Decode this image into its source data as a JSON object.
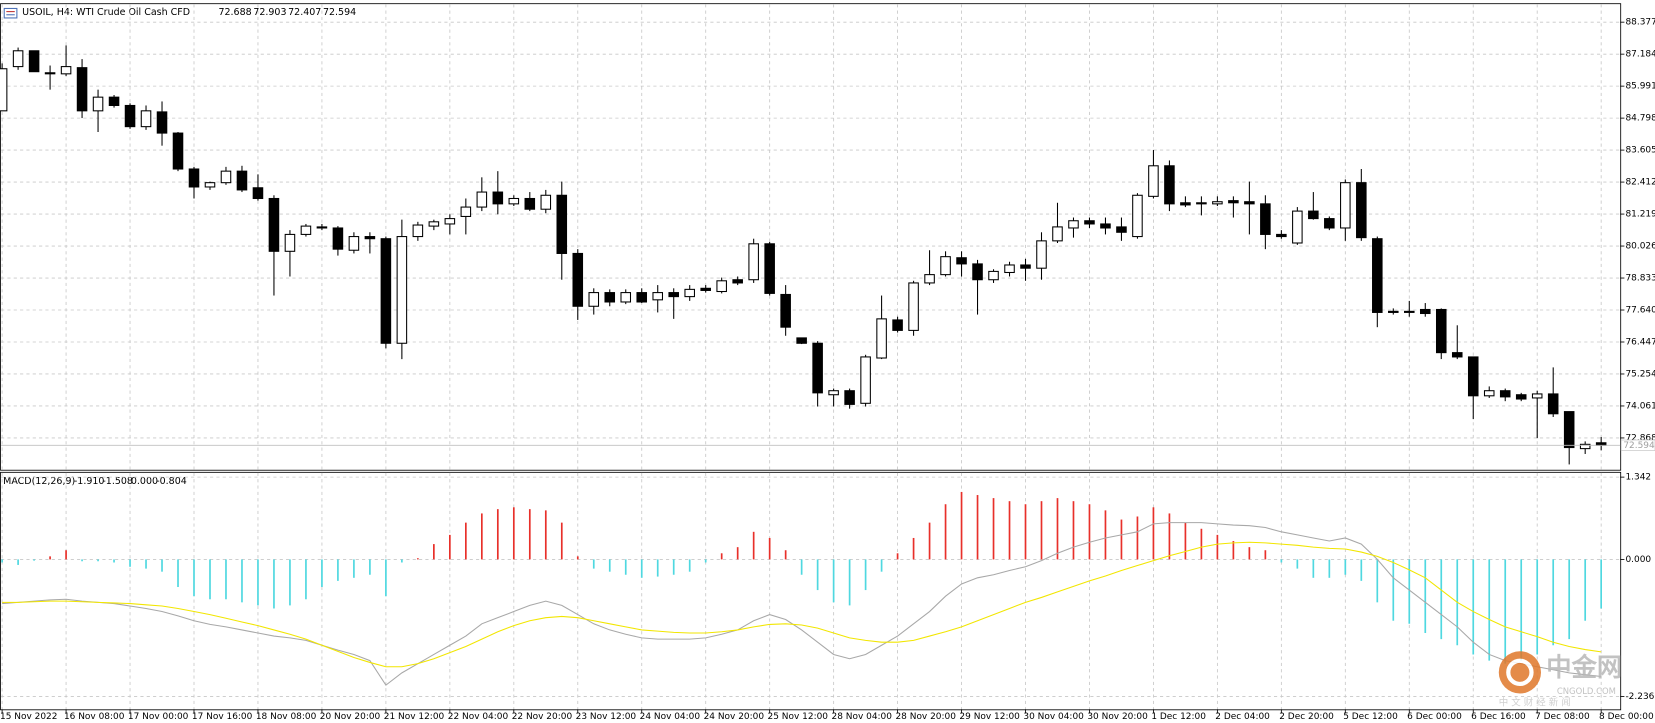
{
  "chart_data": [
    {
      "type": "candlestick",
      "title": "USOIL, H4:  WTI Crude Oil Cash CFD",
      "categories": [
        "15 Nov 2022",
        null,
        null,
        null,
        "16 Nov 08:00",
        null,
        null,
        null,
        "17 Nov 00:00",
        null,
        null,
        null,
        "17 Nov 16:00",
        null,
        null,
        null,
        "18 Nov 08:00",
        null,
        null,
        null,
        "20 Nov 20:00",
        null,
        null,
        null,
        "21 Nov 12:00",
        null,
        null,
        null,
        "22 Nov 04:00",
        null,
        null,
        null,
        "22 Nov 20:00",
        null,
        null,
        null,
        "23 Nov 12:00",
        null,
        null,
        null,
        "24 Nov 04:00",
        null,
        null,
        null,
        "24 Nov 20:00",
        null,
        null,
        null,
        "25 Nov 12:00",
        null,
        null,
        null,
        "28 Nov 04:00",
        null,
        null,
        null,
        "28 Nov 20:00",
        null,
        null,
        null,
        "29 Nov 12:00",
        null,
        null,
        null,
        "30 Nov 04:00",
        null,
        null,
        null,
        "30 Nov 20:00",
        null,
        null,
        null,
        "1 Dec 12:00",
        null,
        null,
        null,
        "2 Dec 04:00",
        null,
        null,
        null,
        "2 Dec 20:00",
        null,
        null,
        null,
        "5 Dec 12:00",
        null,
        null,
        null,
        "6 Dec 00:00",
        null,
        null,
        null,
        "6 Dec 16:00",
        null,
        null,
        null,
        "7 Dec 08:00",
        null,
        null,
        null,
        "8 Dec 00:00"
      ],
      "open": [
        85.07,
        86.72,
        87.31,
        86.49,
        86.45,
        86.68,
        85.07,
        85.58,
        85.27,
        84.48,
        85.03,
        84.24,
        82.9,
        82.23,
        82.39,
        82.82,
        82.2,
        81.8,
        79.83,
        80.46,
        80.74,
        80.7,
        79.87,
        80.38,
        80.3,
        76.4,
        80.38,
        80.77,
        80.85,
        81.13,
        81.48,
        82.04,
        81.6,
        81.8,
        81.4,
        81.92,
        79.75,
        77.78,
        78.29,
        77.94,
        78.29,
        78.02,
        78.29,
        78.14,
        78.45,
        78.33,
        78.77,
        78.77,
        80.11,
        78.22,
        76.6,
        76.4,
        74.48,
        74.63,
        74.16,
        75.85,
        77.27,
        76.88,
        78.65,
        78.96,
        79.59,
        79.36,
        78.77,
        79.04,
        79.32,
        79.2,
        80.22,
        80.7,
        80.97,
        80.85,
        80.74,
        80.38,
        81.88,
        83.02,
        81.64,
        81.6,
        81.6,
        81.72,
        81.68,
        81.6,
        80.46,
        80.14,
        81.33,
        81.05,
        80.7,
        82.39,
        80.3,
        77.59,
        77.59,
        77.66,
        77.66,
        76.05,
        75.89,
        74.44,
        74.63,
        74.48,
        74.36,
        74.51,
        73.85,
        72.47,
        72.688
      ],
      "high": [
        86.84,
        87.43,
        87.31,
        86.76,
        87.51,
        87.0,
        85.86,
        85.66,
        85.35,
        85.27,
        85.42,
        84.28,
        82.98,
        82.43,
        82.98,
        83.02,
        82.7,
        81.92,
        80.62,
        80.85,
        80.85,
        80.77,
        80.54,
        80.54,
        80.38,
        81.01,
        80.93,
        81.01,
        81.21,
        81.8,
        82.59,
        82.82,
        81.92,
        82.04,
        82.12,
        82.43,
        79.91,
        78.45,
        78.41,
        78.41,
        78.45,
        78.57,
        78.45,
        78.57,
        78.57,
        78.85,
        78.89,
        80.3,
        80.18,
        78.57,
        76.6,
        76.48,
        74.71,
        74.71,
        75.97,
        78.18,
        77.39,
        78.73,
        79.87,
        79.83,
        79.83,
        79.51,
        79.16,
        79.44,
        79.55,
        80.54,
        81.64,
        81.09,
        81.09,
        81.09,
        81.09,
        82.0,
        83.61,
        83.22,
        81.88,
        81.88,
        81.88,
        81.88,
        82.43,
        81.92,
        80.62,
        81.48,
        82.04,
        81.13,
        82.51,
        82.9,
        80.38,
        77.7,
        77.98,
        77.9,
        77.7,
        77.07,
        75.89,
        74.79,
        74.71,
        74.55,
        74.63,
        75.5,
        73.85,
        72.74,
        72.903
      ],
      "low": [
        85.07,
        86.6,
        86.53,
        85.86,
        86.37,
        84.8,
        84.28,
        85.19,
        84.4,
        84.36,
        83.77,
        82.82,
        81.8,
        82.12,
        82.31,
        82.04,
        81.72,
        78.18,
        78.89,
        80.38,
        80.62,
        79.67,
        79.75,
        79.75,
        76.21,
        75.81,
        80.22,
        80.62,
        80.46,
        80.46,
        81.33,
        81.21,
        81.52,
        81.33,
        81.25,
        78.77,
        77.27,
        77.47,
        77.78,
        77.86,
        77.9,
        77.55,
        77.31,
        77.98,
        78.29,
        78.26,
        78.57,
        78.65,
        78.18,
        76.68,
        76.37,
        74.04,
        74.04,
        73.96,
        74.04,
        75.81,
        76.8,
        76.68,
        78.57,
        78.89,
        78.89,
        77.47,
        78.65,
        78.89,
        78.73,
        78.77,
        80.14,
        80.34,
        80.7,
        80.46,
        80.22,
        80.3,
        81.8,
        81.33,
        81.48,
        81.17,
        81.52,
        81.09,
        80.46,
        79.91,
        80.3,
        80.07,
        81.01,
        80.62,
        80.22,
        80.22,
        77.0,
        77.47,
        77.39,
        77.39,
        75.81,
        75.81,
        73.57,
        74.36,
        74.24,
        74.24,
        72.86,
        73.65,
        71.88,
        72.27,
        72.407
      ],
      "close": [
        86.64,
        87.31,
        86.53,
        86.47,
        86.72,
        85.07,
        85.58,
        85.27,
        84.48,
        85.07,
        84.24,
        82.9,
        82.23,
        82.39,
        82.82,
        82.12,
        81.8,
        79.83,
        80.46,
        80.77,
        80.7,
        79.91,
        80.38,
        80.3,
        76.4,
        80.38,
        80.81,
        80.93,
        81.05,
        81.48,
        82.04,
        81.6,
        81.8,
        81.4,
        81.92,
        79.75,
        77.78,
        78.29,
        77.94,
        78.29,
        77.94,
        78.29,
        78.14,
        78.41,
        78.37,
        78.73,
        78.65,
        80.11,
        78.26,
        77.0,
        76.4,
        74.55,
        74.63,
        74.12,
        75.89,
        77.31,
        76.88,
        78.65,
        78.96,
        79.63,
        79.36,
        78.77,
        79.08,
        79.32,
        79.2,
        80.22,
        80.74,
        80.97,
        80.85,
        80.7,
        80.54,
        81.92,
        83.02,
        81.6,
        81.56,
        81.64,
        81.68,
        81.64,
        81.6,
        80.46,
        80.38,
        81.33,
        81.05,
        80.7,
        82.39,
        80.34,
        77.55,
        77.55,
        77.58,
        77.51,
        76.05,
        75.89,
        74.44,
        74.63,
        74.4,
        74.32,
        74.51,
        73.77,
        72.51,
        72.63,
        72.594
      ],
      "up_color": "#ffffff",
      "down_color": "#000000",
      "outline_color": "#000000",
      "price_line_color": "#c0c0c0",
      "ylim": [
        71.684,
        89.086
      ],
      "yticks": [
        88.377,
        87.184,
        85.991,
        84.798,
        83.605,
        82.412,
        81.219,
        80.026,
        78.833,
        {
          "value": 77.64,
          "label": "77.640"
        },
        76.447,
        75.254,
        74.061,
        72.868
      ],
      "grid": true
    },
    {
      "type": "macd",
      "title": "MACD(12,26,9)",
      "header_values": [
        "-1.910",
        "-1.508",
        "0.000",
        "-0.804"
      ],
      "series": [
        {
          "color": "#e8302a",
          "negative_color": "#4fd8e0",
          "style": "histogram",
          "values": [
            -0.05,
            -0.09,
            -0.02,
            0.05,
            0.15,
            -0.03,
            -0.03,
            -0.05,
            -0.12,
            -0.15,
            -0.2,
            -0.45,
            -0.6,
            -0.65,
            -0.65,
            -0.7,
            -0.75,
            -0.8,
            -0.75,
            -0.65,
            -0.45,
            -0.35,
            -0.3,
            -0.25,
            -0.6,
            -0.05,
            0.02,
            0.25,
            0.4,
            0.6,
            0.75,
            0.82,
            0.85,
            0.82,
            0.8,
            0.6,
            0.05,
            -0.15,
            -0.2,
            -0.25,
            -0.3,
            -0.28,
            -0.25,
            -0.2,
            -0.05,
            0.1,
            0.2,
            0.45,
            0.35,
            0.15,
            -0.25,
            -0.5,
            -0.7,
            -0.75,
            -0.5,
            -0.2,
            0.1,
            0.35,
            0.6,
            0.9,
            1.1,
            1.05,
            1.0,
            0.95,
            0.9,
            0.95,
            1.0,
            0.95,
            0.9,
            0.8,
            0.65,
            0.7,
            0.85,
            0.75,
            0.6,
            0.5,
            0.4,
            0.3,
            0.2,
            0.15,
            -0.05,
            -0.15,
            -0.3,
            -0.3,
            -0.25,
            -0.35,
            -0.7,
            -1.0,
            -1.05,
            -1.2,
            -1.3,
            -1.4,
            -1.55,
            -1.65,
            -1.7,
            -1.65,
            -1.55,
            -1.4,
            -1.3,
            -1.0,
            -0.8
          ]
        },
        {
          "color": "#a8a8a8",
          "style": "line",
          "values": [
            -0.72,
            -0.7,
            -0.68,
            -0.66,
            -0.65,
            -0.68,
            -0.7,
            -0.72,
            -0.76,
            -0.8,
            -0.85,
            -0.92,
            -1.0,
            -1.06,
            -1.1,
            -1.15,
            -1.2,
            -1.25,
            -1.28,
            -1.32,
            -1.4,
            -1.48,
            -1.55,
            -1.65,
            -2.05,
            -1.85,
            -1.7,
            -1.55,
            -1.4,
            -1.25,
            -1.05,
            -0.95,
            -0.85,
            -0.75,
            -0.68,
            -0.75,
            -0.9,
            -1.05,
            -1.15,
            -1.22,
            -1.28,
            -1.3,
            -1.3,
            -1.3,
            -1.28,
            -1.22,
            -1.15,
            -1.0,
            -0.9,
            -0.98,
            -1.15,
            -1.35,
            -1.55,
            -1.62,
            -1.55,
            -1.4,
            -1.25,
            -1.05,
            -0.85,
            -0.6,
            -0.4,
            -0.3,
            -0.25,
            -0.18,
            -0.12,
            -0.02,
            0.1,
            0.2,
            0.28,
            0.35,
            0.4,
            0.45,
            0.58,
            0.6,
            0.6,
            0.6,
            0.58,
            0.56,
            0.55,
            0.52,
            0.45,
            0.4,
            0.35,
            0.3,
            0.35,
            0.25,
            0.0,
            -0.3,
            -0.5,
            -0.7,
            -0.9,
            -1.1,
            -1.35,
            -1.55,
            -1.65,
            -1.7,
            -1.75,
            -1.8,
            -1.85,
            -1.88,
            -1.91
          ]
        },
        {
          "color": "#f2e600",
          "style": "line",
          "values": [
            -0.7,
            -0.7,
            -0.69,
            -0.68,
            -0.68,
            -0.69,
            -0.7,
            -0.71,
            -0.72,
            -0.74,
            -0.76,
            -0.8,
            -0.85,
            -0.9,
            -0.96,
            -1.02,
            -1.08,
            -1.15,
            -1.22,
            -1.3,
            -1.4,
            -1.5,
            -1.6,
            -1.68,
            -1.75,
            -1.75,
            -1.7,
            -1.62,
            -1.52,
            -1.42,
            -1.3,
            -1.18,
            -1.08,
            -1.0,
            -0.95,
            -0.93,
            -0.95,
            -1.0,
            -1.05,
            -1.1,
            -1.15,
            -1.17,
            -1.19,
            -1.2,
            -1.2,
            -1.18,
            -1.15,
            -1.1,
            -1.06,
            -1.05,
            -1.07,
            -1.12,
            -1.2,
            -1.28,
            -1.32,
            -1.35,
            -1.35,
            -1.32,
            -1.25,
            -1.18,
            -1.1,
            -1.0,
            -0.9,
            -0.8,
            -0.7,
            -0.62,
            -0.53,
            -0.44,
            -0.35,
            -0.27,
            -0.18,
            -0.1,
            -0.02,
            0.06,
            0.13,
            0.2,
            0.25,
            0.27,
            0.28,
            0.27,
            0.25,
            0.23,
            0.2,
            0.18,
            0.17,
            0.12,
            0.05,
            -0.05,
            -0.17,
            -0.3,
            -0.5,
            -0.7,
            -0.85,
            -0.98,
            -1.1,
            -1.18,
            -1.26,
            -1.35,
            -1.42,
            -1.47,
            -1.508
          ]
        }
      ],
      "ylim": [
        -2.444,
        1.429
      ],
      "yticks": [
        1.342,
        {
          "value": 0,
          "label": "0.000"
        },
        -2.236
      ],
      "grid": true
    }
  ],
  "watermark": {
    "brand": "中金网",
    "site": "CNGOLD.COM",
    "tagline": "中 文 财 经 新 闻"
  }
}
